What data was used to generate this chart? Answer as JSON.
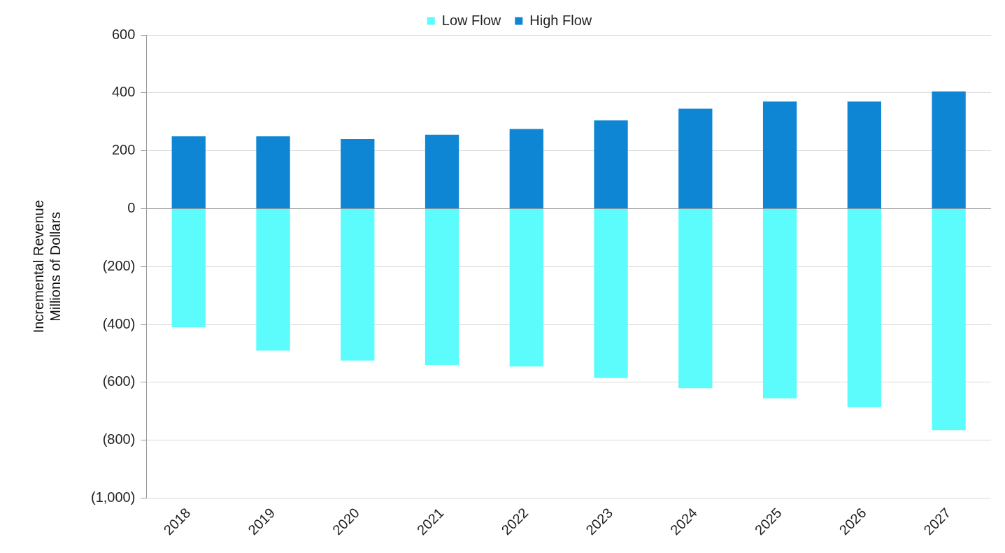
{
  "chart_data": {
    "type": "bar",
    "stacked": true,
    "ylabel": "Incremental Revenue\nMillions of Dollars",
    "categories": [
      "2018",
      "2019",
      "2020",
      "2021",
      "2022",
      "2023",
      "2024",
      "2025",
      "2026",
      "2027"
    ],
    "series": [
      {
        "name": "Low Flow",
        "color": "#5cfcfc",
        "values": [
          -410,
          -490,
          -525,
          -540,
          -545,
          -585,
          -620,
          -655,
          -685,
          -765
        ]
      },
      {
        "name": "High Flow",
        "color": "#0e86d4",
        "values": [
          250,
          250,
          240,
          255,
          275,
          305,
          345,
          370,
          370,
          405
        ]
      }
    ],
    "ylim": [
      -1000,
      600
    ],
    "yticks": [
      {
        "value": -1000,
        "label": "(1,000)"
      },
      {
        "value": -800,
        "label": "(800)"
      },
      {
        "value": -600,
        "label": "(600)"
      },
      {
        "value": -400,
        "label": "(400)"
      },
      {
        "value": -200,
        "label": "(200)"
      },
      0,
      200,
      400,
      600
    ],
    "grid": "y",
    "legend": "top"
  }
}
